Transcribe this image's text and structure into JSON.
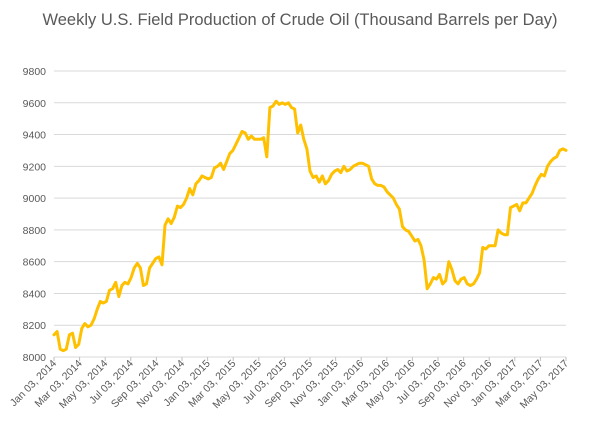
{
  "chart_data": {
    "type": "line",
    "title": "Weekly U.S. Field Production of Crude Oil  (Thousand Barrels per Day)",
    "xlabel": "",
    "ylabel": "",
    "ylim": [
      8000,
      9800
    ],
    "yticks": [
      8000,
      8200,
      8400,
      8600,
      8800,
      9000,
      9200,
      9400,
      9600,
      9800
    ],
    "x_tick_labels": [
      "Jan 03, 2014",
      "Mar 03, 2014",
      "May 03, 2014",
      "Jul 03, 2014",
      "Sep 03, 2014",
      "Nov 03, 2014",
      "Jan 03, 2015",
      "Mar 03, 2015",
      "May 03, 2015",
      "Jul 03, 2015",
      "Sep 03, 2015",
      "Nov 03, 2015",
      "Jan 03, 2016",
      "Mar 03, 2016",
      "May 03, 2016",
      "Jul 03, 2016",
      "Sep 03, 2016",
      "Nov 03, 2016",
      "Jan 03, 2017",
      "Mar 03, 2017",
      "May 03, 2017"
    ],
    "grid": true,
    "legend": "none",
    "line_color": "#FFC000",
    "series": [
      {
        "values": [
          [
            0,
            8140
          ],
          [
            1,
            8160
          ],
          [
            2,
            8050
          ],
          [
            3,
            8040
          ],
          [
            4,
            8050
          ],
          [
            5,
            8140
          ],
          [
            6,
            8150
          ],
          [
            7,
            8060
          ],
          [
            8,
            8080
          ],
          [
            9,
            8180
          ],
          [
            10,
            8210
          ],
          [
            11,
            8190
          ],
          [
            12,
            8200
          ],
          [
            13,
            8240
          ],
          [
            14,
            8300
          ],
          [
            15,
            8350
          ],
          [
            16,
            8340
          ],
          [
            17,
            8350
          ],
          [
            18,
            8420
          ],
          [
            19,
            8430
          ],
          [
            20,
            8470
          ],
          [
            21,
            8380
          ],
          [
            22,
            8450
          ],
          [
            23,
            8470
          ],
          [
            24,
            8460
          ],
          [
            25,
            8500
          ],
          [
            26,
            8560
          ],
          [
            27,
            8590
          ],
          [
            28,
            8560
          ],
          [
            29,
            8450
          ],
          [
            30,
            8460
          ],
          [
            31,
            8560
          ],
          [
            32,
            8590
          ],
          [
            33,
            8620
          ],
          [
            34,
            8630
          ],
          [
            35,
            8580
          ],
          [
            36,
            8830
          ],
          [
            37,
            8870
          ],
          [
            38,
            8840
          ],
          [
            39,
            8880
          ],
          [
            40,
            8950
          ],
          [
            41,
            8940
          ],
          [
            42,
            8960
          ],
          [
            43,
            9000
          ],
          [
            44,
            9060
          ],
          [
            45,
            9020
          ],
          [
            46,
            9090
          ],
          [
            47,
            9110
          ],
          [
            48,
            9140
          ],
          [
            49,
            9130
          ],
          [
            50,
            9120
          ],
          [
            51,
            9130
          ],
          [
            52,
            9190
          ],
          [
            53,
            9200
          ],
          [
            54,
            9220
          ],
          [
            55,
            9180
          ],
          [
            56,
            9230
          ],
          [
            57,
            9280
          ],
          [
            58,
            9300
          ],
          [
            59,
            9340
          ],
          [
            60,
            9380
          ],
          [
            61,
            9420
          ],
          [
            62,
            9410
          ],
          [
            63,
            9370
          ],
          [
            64,
            9390
          ],
          [
            65,
            9370
          ],
          [
            66,
            9370
          ],
          [
            67,
            9370
          ],
          [
            68,
            9380
          ],
          [
            69,
            9260
          ],
          [
            70,
            9570
          ],
          [
            71,
            9580
          ],
          [
            72,
            9610
          ],
          [
            73,
            9590
          ],
          [
            74,
            9600
          ],
          [
            75,
            9590
          ],
          [
            76,
            9600
          ],
          [
            77,
            9570
          ],
          [
            78,
            9560
          ],
          [
            79,
            9410
          ],
          [
            80,
            9460
          ],
          [
            81,
            9370
          ],
          [
            82,
            9310
          ],
          [
            83,
            9170
          ],
          [
            84,
            9130
          ],
          [
            85,
            9140
          ],
          [
            86,
            9100
          ],
          [
            87,
            9140
          ],
          [
            88,
            9090
          ],
          [
            89,
            9110
          ],
          [
            90,
            9150
          ],
          [
            91,
            9170
          ],
          [
            92,
            9180
          ],
          [
            93,
            9160
          ],
          [
            94,
            9200
          ],
          [
            95,
            9170
          ],
          [
            96,
            9180
          ],
          [
            97,
            9200
          ],
          [
            98,
            9210
          ],
          [
            99,
            9220
          ],
          [
            100,
            9220
          ],
          [
            101,
            9210
          ],
          [
            102,
            9200
          ],
          [
            103,
            9120
          ],
          [
            104,
            9090
          ],
          [
            105,
            9080
          ],
          [
            106,
            9080
          ],
          [
            107,
            9070
          ],
          [
            108,
            9040
          ],
          [
            109,
            9020
          ],
          [
            110,
            9000
          ],
          [
            111,
            8960
          ],
          [
            112,
            8930
          ],
          [
            113,
            8820
          ],
          [
            114,
            8800
          ],
          [
            115,
            8790
          ],
          [
            116,
            8760
          ],
          [
            117,
            8730
          ],
          [
            118,
            8740
          ],
          [
            119,
            8700
          ],
          [
            120,
            8610
          ],
          [
            121,
            8430
          ],
          [
            122,
            8460
          ],
          [
            123,
            8500
          ],
          [
            124,
            8490
          ],
          [
            125,
            8520
          ],
          [
            126,
            8460
          ],
          [
            127,
            8480
          ],
          [
            128,
            8600
          ],
          [
            129,
            8550
          ],
          [
            130,
            8480
          ],
          [
            131,
            8460
          ],
          [
            132,
            8490
          ],
          [
            133,
            8500
          ],
          [
            134,
            8460
          ],
          [
            135,
            8450
          ],
          [
            136,
            8460
          ],
          [
            137,
            8490
          ],
          [
            138,
            8530
          ],
          [
            139,
            8690
          ],
          [
            140,
            8680
          ],
          [
            141,
            8700
          ],
          [
            142,
            8700
          ],
          [
            143,
            8700
          ],
          [
            144,
            8800
          ],
          [
            145,
            8780
          ],
          [
            146,
            8770
          ],
          [
            147,
            8770
          ],
          [
            148,
            8940
          ],
          [
            149,
            8950
          ],
          [
            150,
            8960
          ],
          [
            151,
            8920
          ],
          [
            152,
            8970
          ],
          [
            153,
            8970
          ],
          [
            154,
            9000
          ],
          [
            155,
            9030
          ],
          [
            156,
            9080
          ],
          [
            157,
            9120
          ],
          [
            158,
            9150
          ],
          [
            159,
            9140
          ],
          [
            160,
            9200
          ],
          [
            161,
            9230
          ],
          [
            162,
            9250
          ],
          [
            163,
            9260
          ],
          [
            164,
            9300
          ],
          [
            165,
            9310
          ],
          [
            166,
            9300
          ]
        ]
      }
    ]
  }
}
